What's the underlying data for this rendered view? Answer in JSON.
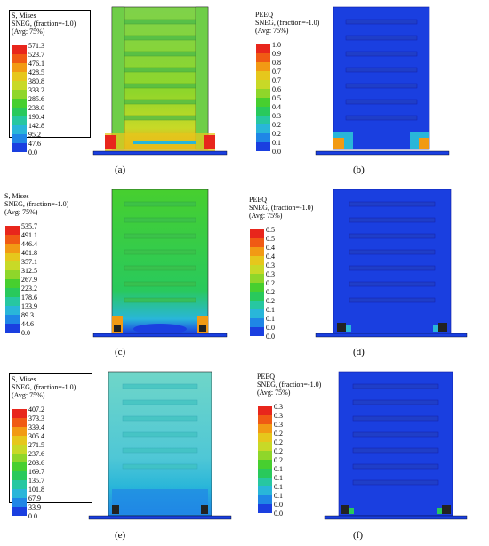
{
  "panels": [
    {
      "label": "(a)",
      "title": "S, Mises",
      "subtitle": "SNEG, (fraction=-1.0)",
      "avg": "(Avg: 75%)",
      "values": [
        "571.3",
        "523.7",
        "476.1",
        "428.5",
        "380.8",
        "333.2",
        "285.6",
        "238.0",
        "190.4",
        "142.8",
        "95.2",
        "47.6",
        "0.0"
      ]
    },
    {
      "label": "(b)",
      "title": "PEEQ",
      "subtitle": "SNEG, (fraction=-1.0)",
      "avg": "(Avg: 75%)",
      "values": [
        "1.0",
        "0.9",
        "0.8",
        "0.7",
        "0.7",
        "0.6",
        "0.5",
        "0.4",
        "0.3",
        "0.2",
        "0.2",
        "0.1",
        "0.0"
      ]
    },
    {
      "label": "(c)",
      "title": "S, Mises",
      "subtitle": "SNEG, (fraction=-1.0)",
      "avg": "(Avg: 75%)",
      "values": [
        "535.7",
        "491.1",
        "446.4",
        "401.8",
        "357.1",
        "312.5",
        "267.9",
        "223.2",
        "178.6",
        "133.9",
        "89.3",
        "44.6",
        "0.0"
      ]
    },
    {
      "label": "(d)",
      "title": "PEEQ",
      "subtitle": "SNEG, (fraction=-1.0)",
      "avg": "(Avg: 75%)",
      "values": [
        "0.5",
        "0.5",
        "0.4",
        "0.4",
        "0.3",
        "0.3",
        "0.2",
        "0.2",
        "0.2",
        "0.1",
        "0.1",
        "0.0",
        "0.0"
      ]
    },
    {
      "label": "(e)",
      "title": "S, Mises",
      "subtitle": "SNEG, (fraction=-1.0)",
      "avg": "(Avg: 75%)",
      "values": [
        "407.2",
        "373.3",
        "339.4",
        "305.4",
        "271.5",
        "237.6",
        "203.6",
        "169.7",
        "135.7",
        "101.8",
        "67.9",
        "33.9",
        "0.0"
      ]
    },
    {
      "label": "(f)",
      "title": "PEEQ",
      "subtitle": "SNEG, (fraction=-1.0)",
      "avg": "(Avg: 75%)",
      "values": [
        "0.3",
        "0.3",
        "0.3",
        "0.2",
        "0.2",
        "0.2",
        "0.2",
        "0.1",
        "0.1",
        "0.1",
        "0.1",
        "0.0",
        "0.0"
      ]
    }
  ],
  "colors": {
    "scale": [
      "#e8261c",
      "#f05a14",
      "#f29a14",
      "#e6c71c",
      "#c8d927",
      "#8fd62a",
      "#47cf2f",
      "#29c95c",
      "#27c7a1",
      "#29b6d9",
      "#1f86e6",
      "#1a3fe0",
      "#1414d0"
    ],
    "border": "#000000"
  }
}
